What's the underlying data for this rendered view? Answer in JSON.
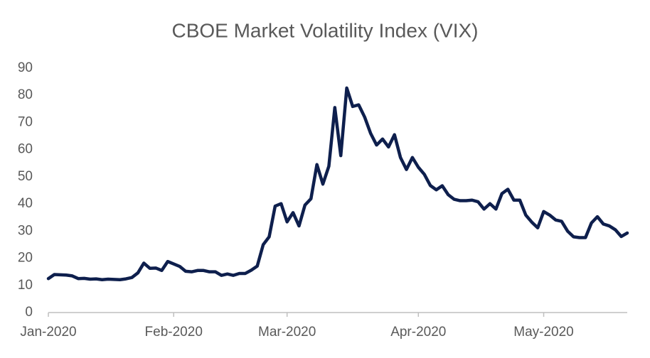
{
  "chart_data": {
    "type": "line",
    "title": "CBOE Market Volatility Index (VIX)",
    "categories": [
      "Jan-2020",
      null,
      null,
      null,
      null,
      null,
      null,
      null,
      null,
      null,
      null,
      null,
      null,
      null,
      null,
      null,
      null,
      null,
      null,
      null,
      null,
      "Feb-2020",
      null,
      null,
      null,
      null,
      null,
      null,
      null,
      null,
      null,
      null,
      null,
      null,
      null,
      null,
      null,
      null,
      null,
      null,
      "Mar-2020",
      null,
      null,
      null,
      null,
      null,
      null,
      null,
      null,
      null,
      null,
      null,
      null,
      null,
      null,
      null,
      null,
      null,
      null,
      null,
      null,
      null,
      "Apr-2020",
      null,
      null,
      null,
      null,
      null,
      null,
      null,
      null,
      null,
      null,
      null,
      null,
      null,
      null,
      null,
      null,
      null,
      null,
      null,
      null,
      "May-2020",
      null,
      null,
      null,
      null,
      null,
      null,
      null,
      null,
      null,
      null,
      null,
      null,
      null,
      null
    ],
    "values": [
      12.5,
      14.0,
      13.9,
      13.8,
      13.5,
      12.5,
      12.6,
      12.3,
      12.4,
      12.1,
      12.3,
      12.2,
      12.1,
      12.4,
      12.9,
      14.6,
      18.2,
      16.3,
      16.4,
      15.5,
      18.8,
      17.9,
      17.0,
      15.2,
      15.0,
      15.5,
      15.5,
      15.0,
      15.0,
      13.7,
      14.2,
      13.7,
      14.4,
      14.4,
      15.6,
      17.1,
      25.0,
      27.9,
      39.2,
      40.1,
      33.4,
      36.8,
      31.9,
      39.6,
      41.9,
      54.5,
      47.3,
      53.9,
      75.5,
      57.8,
      82.7,
      75.9,
      76.5,
      72.0,
      66.0,
      61.7,
      63.9,
      61.0,
      65.5,
      57.1,
      52.7,
      57.1,
      53.5,
      50.9,
      46.8,
      45.2,
      46.7,
      43.4,
      41.7,
      41.2,
      41.2,
      41.4,
      40.8,
      38.1,
      40.1,
      38.1,
      43.8,
      45.4,
      41.4,
      41.4,
      35.9,
      33.3,
      31.2,
      37.2,
      35.9,
      34.1,
      33.6,
      30.0,
      27.9,
      27.6,
      27.6,
      33.0,
      35.3,
      32.6,
      31.9,
      30.5,
      28.0,
      29.3
    ],
    "color": "#0e1f4d",
    "ylim": [
      0,
      90
    ],
    "yticks": [
      0,
      10,
      20,
      30,
      40,
      50,
      60,
      70,
      80,
      90
    ],
    "grid": false
  }
}
